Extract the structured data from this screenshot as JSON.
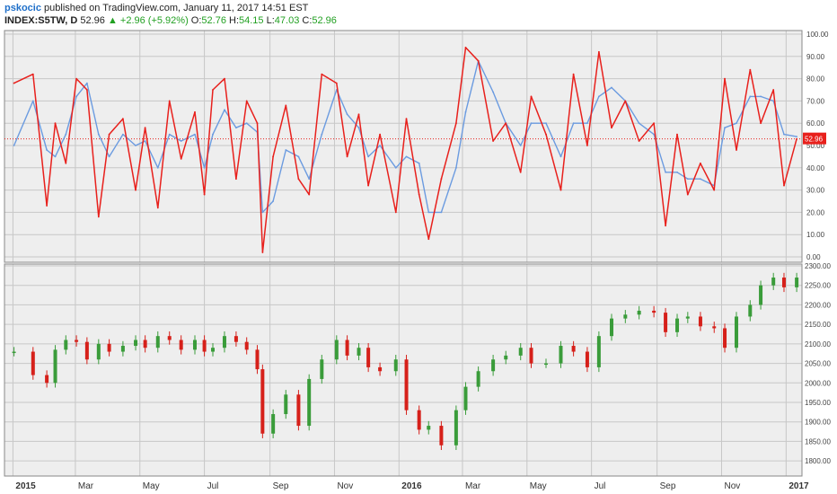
{
  "header": {
    "author": "pskocic",
    "published": "published on TradingView.com, January 11, 2017 14:51 EST",
    "symbol": "INDEX:S5TW, D",
    "last": "52.96",
    "change": "▲ +2.96 (+5.92%)",
    "open_label": "O:",
    "open": "52.76",
    "high_label": "H:",
    "high": "54.15",
    "low_label": "L:",
    "low": "47.03",
    "close_label": "C:",
    "close": "52.96"
  },
  "colors": {
    "breadth_line": "#e8201c",
    "smooth_line": "#6b9be0",
    "up_candle": "#3a9c3a",
    "down_candle": "#d6201a",
    "grid": "#c7c7c7",
    "panel_bg": "#eeeeee",
    "marker_bg": "#e8201c"
  },
  "chart_data": [
    {
      "type": "line",
      "panel": "top",
      "title": "",
      "ylim": [
        0,
        100
      ],
      "y_ticks": [
        "0.00",
        "10.00",
        "20.00",
        "30.00",
        "40.00",
        "50.00",
        "60.00",
        "70.00",
        "80.00",
        "90.00",
        "100.00"
      ],
      "last_value_label": "52.96",
      "reference_level": 52.96,
      "grid": true,
      "series": [
        {
          "role": "breadth",
          "x": [
            "2015-01-02",
            "2015-01-20",
            "2015-02-02",
            "2015-02-10",
            "2015-02-20",
            "2015-03-02",
            "2015-03-12",
            "2015-03-23",
            "2015-04-02",
            "2015-04-15",
            "2015-04-27",
            "2015-05-06",
            "2015-05-18",
            "2015-05-29",
            "2015-06-09",
            "2015-06-22",
            "2015-07-01",
            "2015-07-09",
            "2015-07-20",
            "2015-07-31",
            "2015-08-10",
            "2015-08-20",
            "2015-08-25",
            "2015-09-04",
            "2015-09-16",
            "2015-09-28",
            "2015-10-08",
            "2015-10-20",
            "2015-11-03",
            "2015-11-13",
            "2015-11-24",
            "2015-12-03",
            "2015-12-14",
            "2015-12-29",
            "2016-01-08",
            "2016-01-20",
            "2016-01-29",
            "2016-02-10",
            "2016-02-24",
            "2016-03-04",
            "2016-03-16",
            "2016-03-30",
            "2016-04-11",
            "2016-04-25",
            "2016-05-05",
            "2016-05-19",
            "2016-06-02",
            "2016-06-14",
            "2016-06-27",
            "2016-07-08",
            "2016-07-20",
            "2016-08-02",
            "2016-08-15",
            "2016-08-29",
            "2016-09-09",
            "2016-09-20",
            "2016-09-30",
            "2016-10-12",
            "2016-10-25",
            "2016-11-04",
            "2016-11-15",
            "2016-11-28",
            "2016-12-08",
            "2016-12-20",
            "2016-12-30",
            "2017-01-11"
          ],
          "values": [
            78,
            82,
            23,
            60,
            42,
            80,
            75,
            18,
            55,
            62,
            30,
            58,
            22,
            70,
            44,
            65,
            28,
            75,
            80,
            35,
            70,
            60,
            2,
            45,
            68,
            35,
            28,
            82,
            78,
            45,
            64,
            32,
            55,
            20,
            62,
            28,
            8,
            35,
            60,
            94,
            88,
            52,
            60,
            38,
            72,
            55,
            30,
            82,
            50,
            92,
            58,
            70,
            52,
            60,
            14,
            55,
            28,
            42,
            30,
            80,
            48,
            84,
            60,
            75,
            32,
            53
          ]
        },
        {
          "role": "smoothed",
          "x": [
            "2015-01-02",
            "2015-01-20",
            "2015-02-02",
            "2015-02-10",
            "2015-02-20",
            "2015-03-02",
            "2015-03-12",
            "2015-03-23",
            "2015-04-02",
            "2015-04-15",
            "2015-04-27",
            "2015-05-06",
            "2015-05-18",
            "2015-05-29",
            "2015-06-09",
            "2015-06-22",
            "2015-07-01",
            "2015-07-09",
            "2015-07-20",
            "2015-07-31",
            "2015-08-10",
            "2015-08-20",
            "2015-08-25",
            "2015-09-04",
            "2015-09-16",
            "2015-09-28",
            "2015-10-08",
            "2015-10-20",
            "2015-11-03",
            "2015-11-13",
            "2015-11-24",
            "2015-12-03",
            "2015-12-14",
            "2015-12-29",
            "2016-01-08",
            "2016-01-20",
            "2016-01-29",
            "2016-02-10",
            "2016-02-24",
            "2016-03-04",
            "2016-03-16",
            "2016-03-30",
            "2016-04-11",
            "2016-04-25",
            "2016-05-05",
            "2016-05-19",
            "2016-06-02",
            "2016-06-14",
            "2016-06-27",
            "2016-07-08",
            "2016-07-20",
            "2016-08-02",
            "2016-08-15",
            "2016-08-29",
            "2016-09-09",
            "2016-09-20",
            "2016-09-30",
            "2016-10-12",
            "2016-10-25",
            "2016-11-04",
            "2016-11-15",
            "2016-11-28",
            "2016-12-08",
            "2016-12-20",
            "2016-12-30",
            "2017-01-11"
          ],
          "values": [
            50,
            70,
            48,
            45,
            55,
            72,
            78,
            55,
            45,
            55,
            50,
            52,
            40,
            55,
            52,
            55,
            40,
            55,
            66,
            58,
            60,
            56,
            20,
            25,
            48,
            45,
            35,
            55,
            75,
            64,
            58,
            45,
            50,
            40,
            45,
            42,
            20,
            20,
            40,
            65,
            88,
            74,
            60,
            50,
            60,
            60,
            45,
            60,
            60,
            72,
            76,
            70,
            60,
            55,
            38,
            38,
            35,
            35,
            32,
            58,
            60,
            72,
            72,
            70,
            55,
            54
          ]
        }
      ]
    },
    {
      "type": "candlestick",
      "panel": "bottom",
      "title": "",
      "ylim": [
        1775,
        2300
      ],
      "y_ticks": [
        "1800.00",
        "1850.00",
        "1900.00",
        "1950.00",
        "2000.00",
        "2050.00",
        "2100.00",
        "2150.00",
        "2200.00",
        "2250.00",
        "2300.00"
      ],
      "grid": true,
      "series": [
        {
          "role": "price",
          "x": [
            "2015-01-02",
            "2015-01-20",
            "2015-02-02",
            "2015-02-10",
            "2015-02-20",
            "2015-03-02",
            "2015-03-12",
            "2015-03-23",
            "2015-04-02",
            "2015-04-15",
            "2015-04-27",
            "2015-05-06",
            "2015-05-18",
            "2015-05-29",
            "2015-06-09",
            "2015-06-22",
            "2015-07-01",
            "2015-07-09",
            "2015-07-20",
            "2015-07-31",
            "2015-08-10",
            "2015-08-20",
            "2015-08-25",
            "2015-09-04",
            "2015-09-16",
            "2015-09-28",
            "2015-10-08",
            "2015-10-20",
            "2015-11-03",
            "2015-11-13",
            "2015-11-24",
            "2015-12-03",
            "2015-12-14",
            "2015-12-29",
            "2016-01-08",
            "2016-01-20",
            "2016-01-29",
            "2016-02-10",
            "2016-02-24",
            "2016-03-04",
            "2016-03-16",
            "2016-03-30",
            "2016-04-11",
            "2016-04-25",
            "2016-05-05",
            "2016-05-19",
            "2016-06-02",
            "2016-06-14",
            "2016-06-27",
            "2016-07-08",
            "2016-07-20",
            "2016-08-02",
            "2016-08-15",
            "2016-08-29",
            "2016-09-09",
            "2016-09-20",
            "2016-09-30",
            "2016-10-12",
            "2016-10-25",
            "2016-11-04",
            "2016-11-15",
            "2016-11-28",
            "2016-12-08",
            "2016-12-20",
            "2016-12-30",
            "2017-01-11"
          ],
          "values": [
            2080,
            2020,
            2000,
            2085,
            2110,
            2105,
            2060,
            2100,
            2080,
            2095,
            2110,
            2090,
            2120,
            2110,
            2085,
            2110,
            2080,
            2090,
            2120,
            2105,
            2085,
            2035,
            1870,
            1920,
            1970,
            1890,
            2010,
            2060,
            2110,
            2070,
            2090,
            2040,
            2030,
            2060,
            1930,
            1880,
            1890,
            1840,
            1930,
            1990,
            2030,
            2060,
            2070,
            2090,
            2050,
            2050,
            2095,
            2080,
            2040,
            2120,
            2165,
            2175,
            2185,
            2180,
            2130,
            2165,
            2170,
            2145,
            2140,
            2090,
            2170,
            2200,
            2250,
            2270,
            2245,
            2270
          ]
        }
      ]
    }
  ],
  "x_axis_labels": [
    {
      "x": "2015-01-01",
      "label": "2015",
      "bold": true
    },
    {
      "x": "2015-03-01",
      "label": "Mar",
      "bold": false
    },
    {
      "x": "2015-05-01",
      "label": "May",
      "bold": false
    },
    {
      "x": "2015-07-01",
      "label": "Jul",
      "bold": false
    },
    {
      "x": "2015-09-01",
      "label": "Sep",
      "bold": false
    },
    {
      "x": "2015-11-01",
      "label": "Nov",
      "bold": false
    },
    {
      "x": "2016-01-01",
      "label": "2016",
      "bold": true
    },
    {
      "x": "2016-03-01",
      "label": "Mar",
      "bold": false
    },
    {
      "x": "2016-05-01",
      "label": "May",
      "bold": false
    },
    {
      "x": "2016-07-01",
      "label": "Jul",
      "bold": false
    },
    {
      "x": "2016-09-01",
      "label": "Sep",
      "bold": false
    },
    {
      "x": "2016-11-01",
      "label": "Nov",
      "bold": false
    },
    {
      "x": "2017-01-01",
      "label": "2017",
      "bold": true
    }
  ]
}
